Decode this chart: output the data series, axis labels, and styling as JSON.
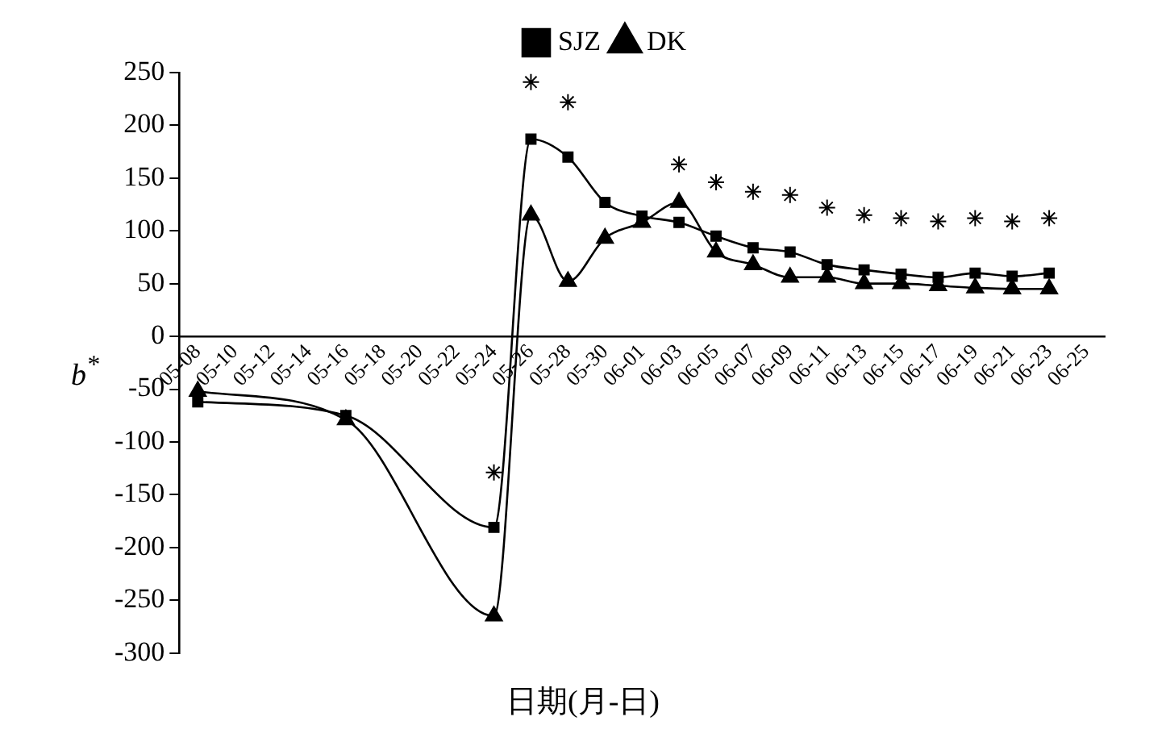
{
  "chart_data": {
    "type": "line",
    "xlabel": "日期(月-日)",
    "ylabel": "b$^{*}$",
    "categories": [
      "05-08",
      "05-10",
      "05-12",
      "05-14",
      "05-16",
      "05-18",
      "05-20",
      "05-22",
      "05-24",
      "05-26",
      "05-28",
      "05-30",
      "06-01",
      "06-03",
      "06-05",
      "06-07",
      "06-09",
      "06-11",
      "06-13",
      "06-15",
      "06-17",
      "06-19",
      "06-21",
      "06-23",
      "06-25"
    ],
    "series": [
      {
        "name": "SJZ",
        "color": "#000000",
        "marker": "square",
        "values": [
          -62,
          null,
          null,
          null,
          -75,
          null,
          null,
          null,
          -181,
          187,
          170,
          127,
          114,
          108,
          95,
          84,
          80,
          68,
          63,
          59,
          56,
          60,
          57,
          60,
          null
        ]
      },
      {
        "name": "DK",
        "color": "#000000",
        "marker": "triangle",
        "values": [
          -52,
          null,
          null,
          null,
          -79,
          null,
          null,
          null,
          -265,
          115,
          52,
          93,
          108,
          127,
          80,
          68,
          56,
          56,
          50,
          50,
          48,
          46,
          45,
          45,
          null
        ]
      },
      {
        "type": "scatter",
        "color": "#000000",
        "marker": "cross",
        "values": [
          null,
          null,
          null,
          null,
          null,
          null,
          null,
          null,
          -129,
          241,
          222,
          null,
          null,
          163,
          146,
          137,
          134,
          122,
          115,
          112,
          109,
          112,
          109,
          112,
          null
        ]
      }
    ],
    "ylim": [
      -300,
      250
    ],
    "yticks": [
      -300,
      -250,
      -200,
      -150,
      -100,
      -50,
      0,
      50,
      100,
      150,
      200,
      250
    ],
    "grid": false,
    "legend": "top"
  }
}
